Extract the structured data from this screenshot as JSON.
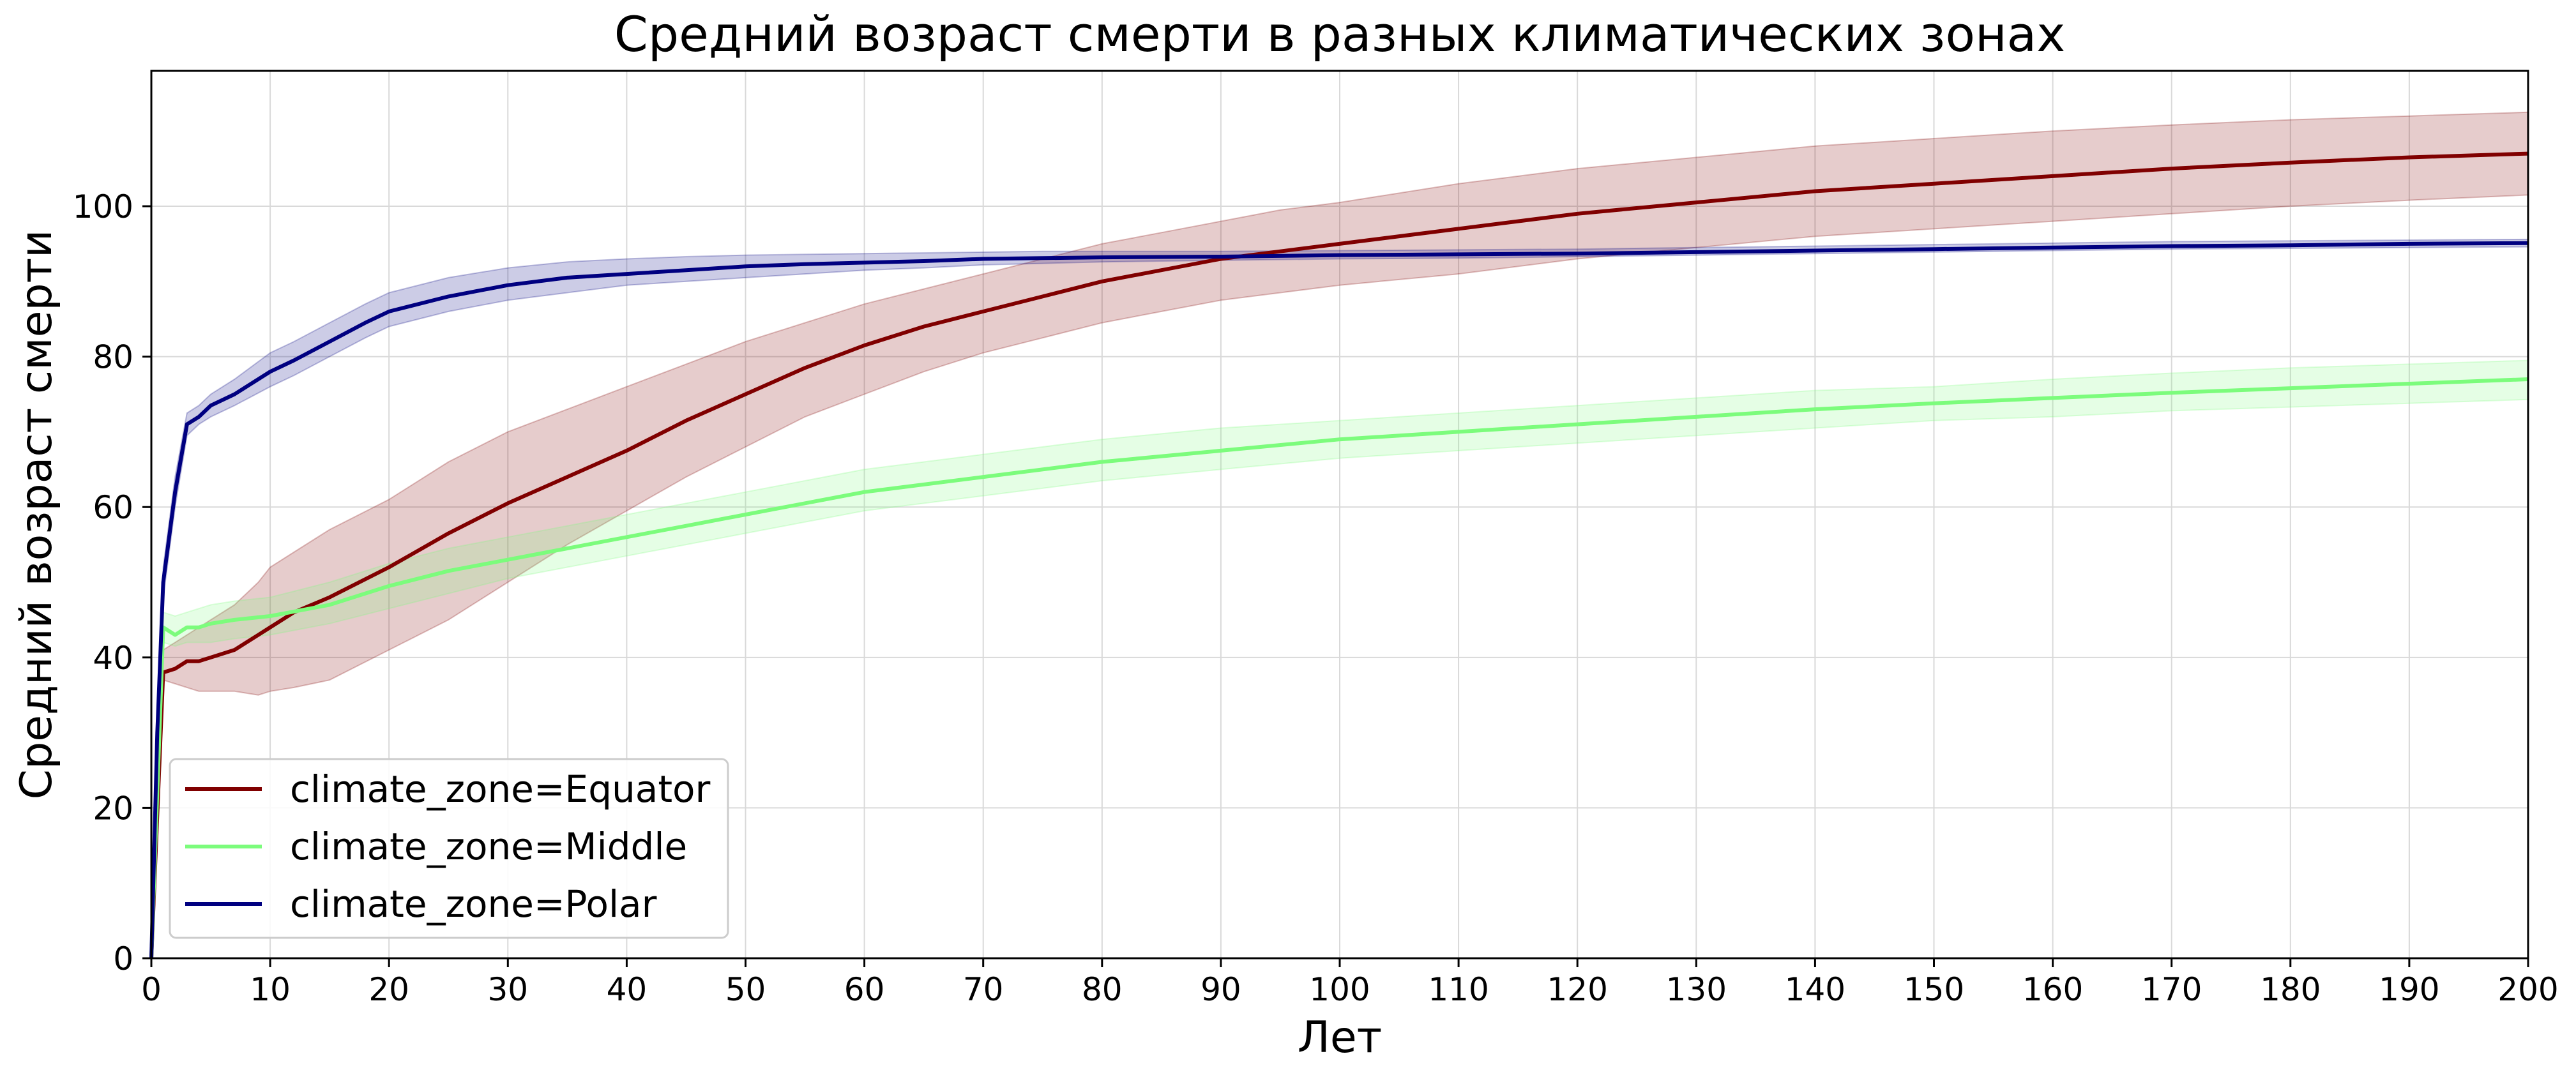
{
  "chart_data": {
    "type": "line",
    "title": "Средний возраст смерти в разных климатических зонах",
    "xlabel": "Лет",
    "ylabel": "Средний возраст смерти",
    "xlim": [
      0,
      200
    ],
    "ylim": [
      0,
      118
    ],
    "xticks": [
      0,
      10,
      20,
      30,
      40,
      50,
      60,
      70,
      80,
      90,
      100,
      110,
      120,
      130,
      140,
      150,
      160,
      170,
      180,
      190,
      200
    ],
    "yticks": [
      0,
      20,
      40,
      60,
      80,
      100
    ],
    "grid": true,
    "legend_position": "lower-left",
    "series": [
      {
        "name": "climate_zone=Equator",
        "color": "#800000",
        "x": [
          0,
          1,
          2,
          3,
          4,
          5,
          7,
          9,
          10,
          12,
          15,
          20,
          25,
          30,
          35,
          40,
          45,
          50,
          55,
          60,
          65,
          70,
          75,
          80,
          85,
          90,
          95,
          100,
          110,
          120,
          130,
          140,
          150,
          160,
          170,
          180,
          190,
          200
        ],
        "y": [
          0,
          38,
          38.5,
          39.5,
          39.5,
          40,
          41,
          43,
          44,
          46,
          48,
          52,
          56.5,
          60.5,
          64,
          67.5,
          71.5,
          75,
          78.5,
          81.5,
          84,
          86,
          88,
          90,
          91.5,
          93,
          94,
          95,
          97,
          99,
          100.5,
          102,
          103,
          104,
          105,
          105.8,
          106.5,
          107
        ],
        "lower": [
          0,
          37,
          36.5,
          36,
          35.5,
          35.5,
          35.5,
          35,
          35.5,
          36,
          37,
          41,
          45,
          50,
          55,
          59.5,
          64,
          68,
          72,
          75,
          78,
          80.5,
          82.5,
          84.5,
          86,
          87.5,
          88.5,
          89.5,
          91,
          93,
          94.5,
          96,
          97,
          98,
          99,
          100,
          100.8,
          101.5
        ],
        "upper": [
          0,
          41,
          42,
          43,
          44,
          45,
          47,
          50,
          52,
          54,
          57,
          61,
          66,
          70,
          73,
          76,
          79,
          82,
          84.5,
          87,
          89,
          91,
          93,
          95,
          96.5,
          98,
          99.5,
          100.5,
          103,
          105,
          106.5,
          108,
          109,
          110,
          110.8,
          111.5,
          112,
          112.5
        ]
      },
      {
        "name": "climate_zone=Middle",
        "color": "#7cfc7c",
        "x": [
          0,
          1,
          2,
          3,
          4,
          5,
          7,
          10,
          15,
          20,
          25,
          30,
          35,
          40,
          45,
          50,
          60,
          70,
          80,
          90,
          100,
          110,
          120,
          130,
          140,
          150,
          160,
          170,
          180,
          190,
          200
        ],
        "y": [
          0,
          44,
          43,
          44,
          44,
          44.5,
          45,
          45.5,
          47,
          49.5,
          51.5,
          53,
          54.5,
          56,
          57.5,
          59,
          62,
          64,
          66,
          67.5,
          69,
          70,
          71,
          72,
          73,
          73.8,
          74.5,
          75.2,
          75.8,
          76.4,
          77
        ],
        "lower": [
          0,
          42,
          41.5,
          42,
          42,
          42,
          42.5,
          43,
          44.5,
          46.5,
          48.5,
          50.5,
          52,
          53.5,
          55,
          56.5,
          59.5,
          61.5,
          63.5,
          65,
          66.5,
          67.5,
          68.5,
          69.5,
          70.5,
          71.5,
          72,
          72.8,
          73.3,
          73.8,
          74.3
        ],
        "upper": [
          0,
          46,
          45.5,
          46,
          46.5,
          47,
          47.5,
          48,
          50,
          52.5,
          54.5,
          56,
          57.5,
          59,
          60.5,
          62,
          65,
          67,
          69,
          70.5,
          71.5,
          72.5,
          73.5,
          74.5,
          75.5,
          76,
          77,
          77.8,
          78.5,
          79,
          79.5
        ]
      },
      {
        "name": "climate_zone=Polar",
        "color": "#000080",
        "x": [
          0,
          0.5,
          1,
          2,
          3,
          4,
          5,
          7,
          10,
          12,
          15,
          18,
          20,
          25,
          30,
          35,
          40,
          45,
          50,
          55,
          60,
          65,
          70,
          75,
          80,
          90,
          100,
          110,
          120,
          130,
          140,
          150,
          160,
          170,
          180,
          190,
          200
        ],
        "y": [
          0,
          30,
          50,
          62,
          71,
          72,
          73.5,
          75,
          78,
          79.5,
          82,
          84.5,
          86,
          88,
          89.5,
          90.5,
          91,
          91.5,
          92,
          92.3,
          92.5,
          92.7,
          93,
          93.1,
          93.2,
          93.3,
          93.5,
          93.6,
          93.7,
          93.9,
          94.1,
          94.3,
          94.5,
          94.7,
          94.8,
          95,
          95.1
        ],
        "lower": [
          0,
          28,
          48,
          60,
          69.5,
          71,
          72,
          73.5,
          76,
          77.5,
          80,
          82.5,
          84,
          86,
          87.5,
          88.5,
          89.5,
          90,
          90.5,
          91,
          91.5,
          91.8,
          92.2,
          92.4,
          92.6,
          92.8,
          93,
          93.1,
          93.3,
          93.5,
          93.7,
          93.9,
          94.1,
          94.3,
          94.4,
          94.5,
          94.6
        ],
        "upper": [
          0,
          32,
          52,
          64,
          72.5,
          73.5,
          75,
          77,
          80.5,
          82,
          84.5,
          87,
          88.5,
          90.5,
          91.8,
          92.6,
          93,
          93.3,
          93.5,
          93.6,
          93.7,
          93.8,
          93.9,
          94,
          94,
          94,
          94.1,
          94.2,
          94.3,
          94.5,
          94.7,
          94.9,
          95.1,
          95.3,
          95.4,
          95.5,
          95.6
        ]
      }
    ]
  }
}
